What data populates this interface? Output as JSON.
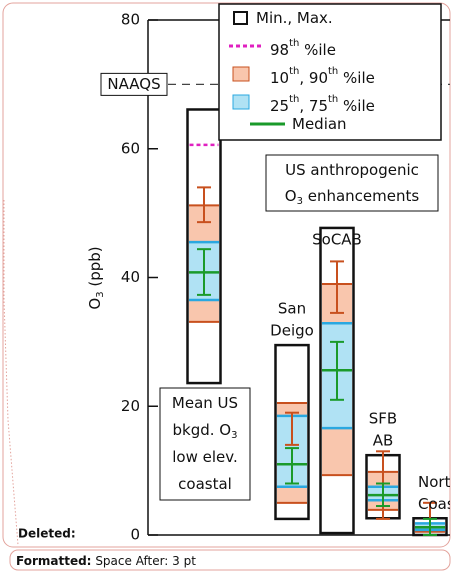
{
  "chart_data": {
    "type": "box",
    "y_label": {
      "text": [
        "O",
        "3"
      ],
      "unit": "(ppb)"
    },
    "ylim": [
      0,
      80
    ],
    "yticks": [
      0,
      20,
      40,
      60,
      80
    ],
    "naaqs": {
      "label": "NAAQS",
      "value": 70
    },
    "legend": [
      {
        "text": [
          "Min., Max."
        ],
        "kind": "minmax"
      },
      {
        "text": [
          "98",
          "th",
          " %ile"
        ],
        "kind": "p98"
      },
      {
        "text": [
          "10",
          "th",
          ", 90",
          "th",
          " %ile"
        ],
        "kind": "p10p90"
      },
      {
        "text": [
          "25",
          "th",
          ", 75",
          "th",
          " %ile"
        ],
        "kind": "p25p75"
      },
      {
        "text": [
          "Median"
        ],
        "kind": "median"
      }
    ],
    "colors": {
      "frame": "#111111",
      "p98": "#e020c0",
      "outer_fill": "#f9c6ad",
      "outer_line": "#c8501e",
      "inner_fill": "#b0e2f4",
      "inner_line": "#2aa8e0",
      "median": "#1a9a2a",
      "error": "#c8501e"
    },
    "annotation": {
      "lines": [
        [
          "US anthropogenic"
        ],
        [
          "O",
          "3",
          " enhancements"
        ]
      ]
    },
    "series": [
      {
        "label": [],
        "box_text": [
          [
            "Mean US"
          ],
          [
            "bkgd. O",
            "3"
          ],
          [
            "low elev."
          ],
          [
            "coastal"
          ]
        ],
        "min": 23.6,
        "max": 66.1,
        "p98": 60.6,
        "p10": 33.1,
        "p25": 36.5,
        "median": 40.8,
        "p75": 45.5,
        "p90": 51.2,
        "p90_err": [
          48.6,
          54.0
        ],
        "median_err": [
          37.3,
          44.4
        ]
      },
      {
        "label": [
          "San",
          "Deigo"
        ],
        "min": 2.5,
        "max": 29.5,
        "p10": 5.0,
        "p25": 7.5,
        "median": 11.0,
        "p75": 18.5,
        "p90": 20.5,
        "p90_err": [
          14.0,
          19.0
        ],
        "median_err": [
          8.0,
          13.5
        ]
      },
      {
        "label": [
          "SoCAB"
        ],
        "min": 0.3,
        "max": 47.7,
        "p10": 9.3,
        "p25": 16.6,
        "median": 25.6,
        "p75": 32.9,
        "p90": 39.0,
        "p90_err": [
          34.5,
          42.5
        ],
        "median_err": [
          21.0,
          30.0
        ]
      },
      {
        "label": [
          "SFB",
          "AB"
        ],
        "min": 2.6,
        "max": 12.4,
        "p10": 3.9,
        "p25": 5.4,
        "median": 6.2,
        "p75": 7.5,
        "p90": 9.8,
        "p90_err": [
          2.5,
          13.0
        ],
        "median_err": [
          4.5,
          8.0
        ]
      },
      {
        "label": [
          "Nort",
          "Coas"
        ],
        "min": 0.0,
        "max": 2.6,
        "p10": 0.5,
        "p25": 0.8,
        "median": 1.2,
        "p75": 1.8,
        "p90": 1.5,
        "p90_err": [
          0.0,
          5.0
        ],
        "median_err": [
          0.0,
          2.5
        ]
      }
    ]
  },
  "comments": {
    "deleted": "Deleted:",
    "formatted_label": "Formatted:",
    "formatted_text": "Space After:  3 pt"
  }
}
